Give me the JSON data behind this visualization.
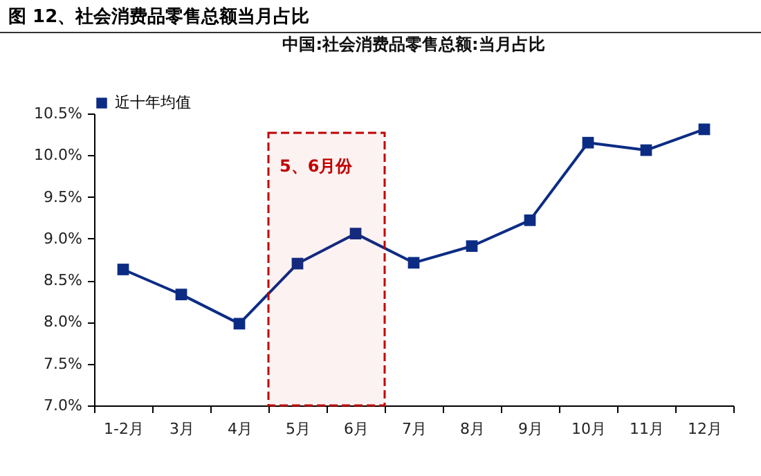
{
  "chart_data": {
    "type": "line",
    "title": "图 12、社会消费品零售总额当月占比",
    "subtitle": "中国:社会消费品零售总额:当月占比",
    "categories": [
      "1-2月",
      "3月",
      "4月",
      "5月",
      "6月",
      "7月",
      "8月",
      "9月",
      "10月",
      "11月",
      "12月"
    ],
    "series": [
      {
        "name": "近十年均值",
        "color": "#0c2c84",
        "values": [
          8.63,
          8.33,
          7.98,
          8.7,
          9.06,
          8.71,
          8.91,
          9.22,
          10.15,
          10.06,
          10.31
        ]
      }
    ],
    "ylim": [
      7,
      10.5
    ],
    "yticks": [
      {
        "value": 7,
        "label": "7.0%"
      },
      {
        "value": 7.5,
        "label": "7.5%"
      },
      {
        "value": 8,
        "label": "8.0%"
      },
      {
        "value": 8.5,
        "label": "8.5%"
      },
      {
        "value": 9,
        "label": "9.0%"
      },
      {
        "value": 9.5,
        "label": "9.5%"
      },
      {
        "value": 10,
        "label": "10.0%"
      },
      {
        "value": 10.5,
        "label": "10.5%"
      }
    ],
    "bands": [
      {
        "axis": "x",
        "from": "5月",
        "to": "6月",
        "label": "5、6月份",
        "color": "#c00000"
      }
    ],
    "grid": false,
    "legend": "top",
    "marker": "square",
    "line_style": "solid"
  }
}
